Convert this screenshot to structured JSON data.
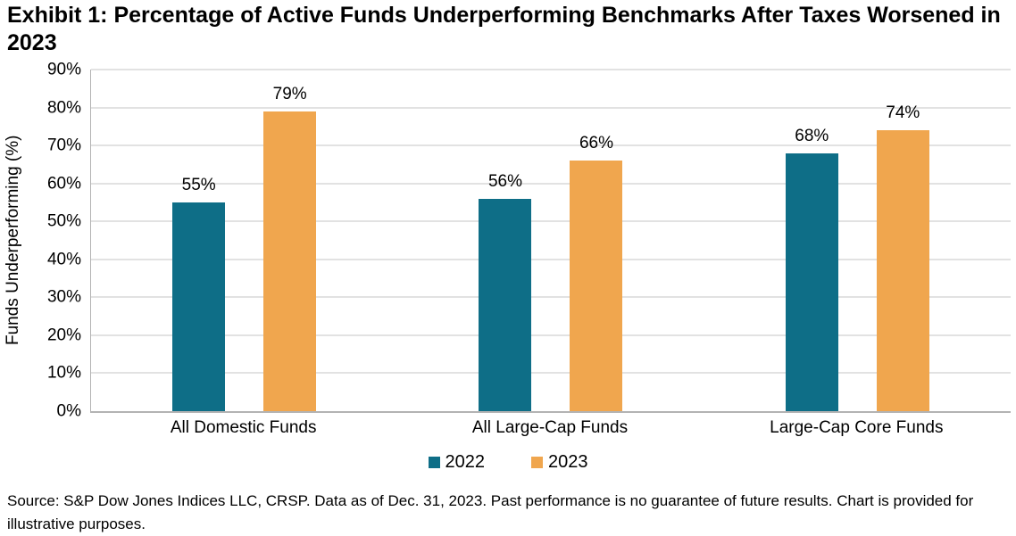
{
  "title": "Exhibit 1: Percentage of Active Funds Underperforming Benchmarks After Taxes Worsened in 2023",
  "chart_data": {
    "type": "bar",
    "categories": [
      "All Domestic Funds",
      "All Large-Cap Funds",
      "Large-Cap Core Funds"
    ],
    "series": [
      {
        "name": "2022",
        "color": "#0e6e87",
        "values": [
          55,
          56,
          68
        ]
      },
      {
        "name": "2023",
        "color": "#f0a64e",
        "values": [
          79,
          66,
          74
        ]
      }
    ],
    "value_suffix": "%",
    "title": "Exhibit 1: Percentage of Active Funds Underperforming Benchmarks After Taxes Worsened in 2023",
    "xlabel": "",
    "ylabel": "Funds Underperforming (%)",
    "ylim": [
      0,
      90
    ],
    "ytick_step": 10,
    "grid": "horizontal",
    "legend_position": "bottom",
    "colors": {
      "series_2022": "#0e6e87",
      "series_2023": "#f0a64e",
      "gridline": "#c6c6c6",
      "axis": "#b3b3b3"
    }
  },
  "source_note": "Source: S&P Dow Jones Indices LLC, CRSP. Data as of Dec. 31, 2023. Past performance is no guarantee of future results. Chart is provided for illustrative purposes."
}
